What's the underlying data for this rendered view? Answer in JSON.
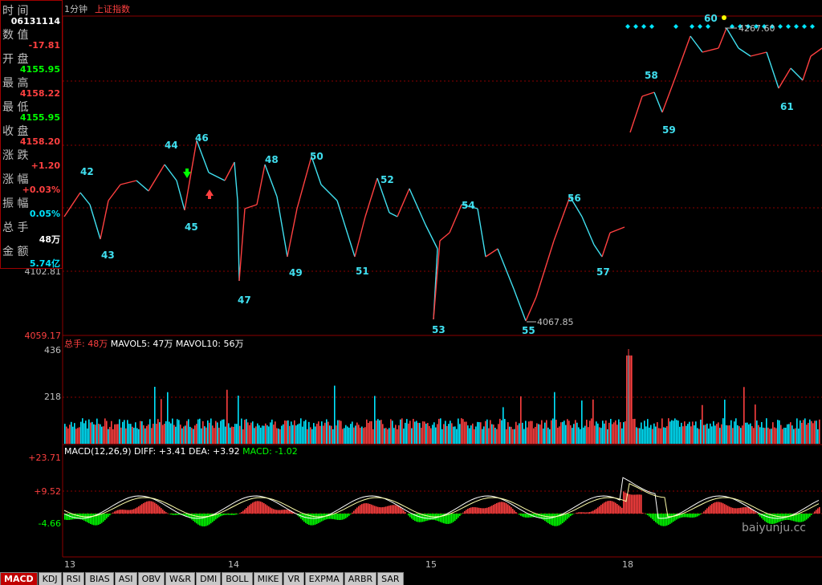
{
  "header": {
    "interval": "1分钟",
    "index_name": "上证指数"
  },
  "info_panel": {
    "time_label": "时 间",
    "time_value": "06131114",
    "points_label": "数 值",
    "points_value": "-17.81",
    "open_label": "开 盘",
    "open_value": "4155.95",
    "high_label": "最 高",
    "high_value": "4158.22",
    "low_label": "最 低",
    "low_value": "4155.95",
    "close_label": "收 盘",
    "close_value": "4158.20",
    "change_label": "涨 跌",
    "change_value": "+1.20",
    "pct_label": "涨 幅",
    "pct_value": "+0.03%",
    "amp_label": "振 幅",
    "amp_value": "0.05%",
    "vol_label": "总 手",
    "vol_value": "48万",
    "amt_label": "金 额",
    "amt_value": "5.74亿",
    "price_axis_low": "4102.81",
    "price_axis_bottom": "4059.17"
  },
  "volume_header": {
    "label": "总手:",
    "value": "48万",
    "mavol5": "MAVOL5: 47万",
    "mavol10": "MAVOL10: 56万",
    "ticks": [
      "436",
      "218"
    ]
  },
  "macd_header": {
    "label": "MACD(12,26,9)",
    "diff": "DIFF: +3.41",
    "dea": "DEA: +3.92",
    "macd": "MACD: -1.02",
    "ticks": [
      "+23.71",
      "+9.52",
      "-4.66"
    ]
  },
  "x_labels": [
    "13",
    "14",
    "15",
    "18"
  ],
  "annotations": {
    "high_mark": "4267.60",
    "low_mark": "4067.85",
    "wave_labels": [
      "42",
      "43",
      "44",
      "45",
      "46",
      "47",
      "48",
      "49",
      "50",
      "51",
      "52",
      "53",
      "54",
      "55",
      "56",
      "57",
      "58",
      "59",
      "60",
      "61"
    ]
  },
  "tabs": [
    "MACD",
    "KDJ",
    "RSI",
    "BIAS",
    "ASI",
    "OBV",
    "W&R",
    "DMI",
    "BOLL",
    "MIKE",
    "VR",
    "EXPMA",
    "ARBR",
    "SAR"
  ],
  "watermark": "baiyunju.cc",
  "colors": {
    "up": "#ff4040",
    "down": "#00ffff",
    "grid": "#8b0000",
    "label_cyan": "#3cc",
    "diff": "#ffffff",
    "dea": "#ffff00",
    "macd_pos": "#ff4040",
    "macd_neg": "#00ff00"
  }
}
